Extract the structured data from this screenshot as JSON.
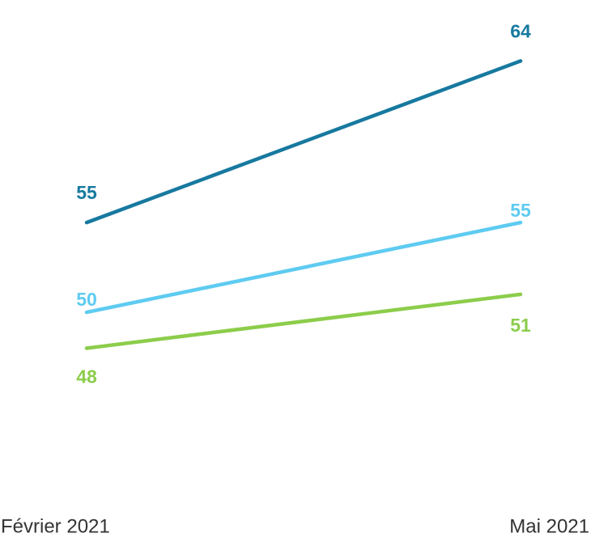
{
  "chart_data": {
    "type": "line",
    "categories": [
      "Février 2021",
      "Mai 2021"
    ],
    "series": [
      {
        "color": "#17799f",
        "values": [
          55,
          64
        ]
      },
      {
        "color": "#5ecbf1",
        "values": [
          50,
          55
        ]
      },
      {
        "color": "#8ccd4b",
        "values": [
          48,
          51
        ]
      }
    ],
    "ylim": [
      40,
      66
    ]
  }
}
